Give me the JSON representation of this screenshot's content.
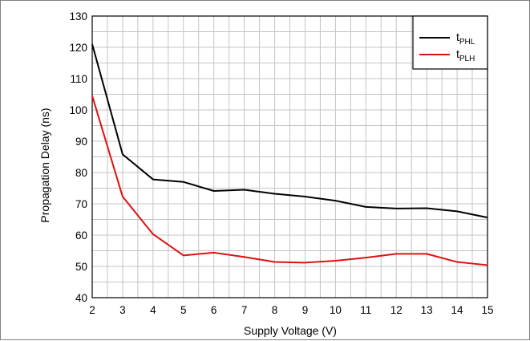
{
  "chart_data": {
    "type": "line",
    "xlabel": "Supply Voltage (V)",
    "ylabel": "Propagation Delay (ns)",
    "xlim": [
      2,
      15
    ],
    "ylim": [
      40,
      130
    ],
    "xticks": [
      2,
      3,
      4,
      5,
      6,
      7,
      8,
      9,
      10,
      11,
      12,
      13,
      14,
      15
    ],
    "yticks": [
      40,
      50,
      60,
      70,
      80,
      90,
      100,
      110,
      120,
      130
    ],
    "minor_x_step": 0.5,
    "minor_y_step": 5,
    "grid": true,
    "legend_position": "top-right",
    "series": [
      {
        "name": "t",
        "name_sub": "PHL",
        "color": "#000000",
        "x": [
          2,
          3,
          4,
          5,
          6,
          7,
          8,
          9,
          10,
          11,
          12,
          13,
          14,
          15
        ],
        "y": [
          121,
          85.8,
          77.8,
          77,
          74.1,
          74.5,
          73.2,
          72.3,
          71,
          69,
          68.5,
          68.6,
          67.6,
          65.6
        ]
      },
      {
        "name": "t",
        "name_sub": "PLH",
        "color": "#e01010",
        "x": [
          2,
          3,
          4,
          5,
          6,
          7,
          8,
          9,
          10,
          11,
          12,
          13,
          14,
          15
        ],
        "y": [
          104.5,
          72.3,
          60.3,
          53.5,
          54.4,
          53,
          51.4,
          51.2,
          51.8,
          52.8,
          54,
          54,
          51.4,
          50.4
        ]
      }
    ]
  }
}
